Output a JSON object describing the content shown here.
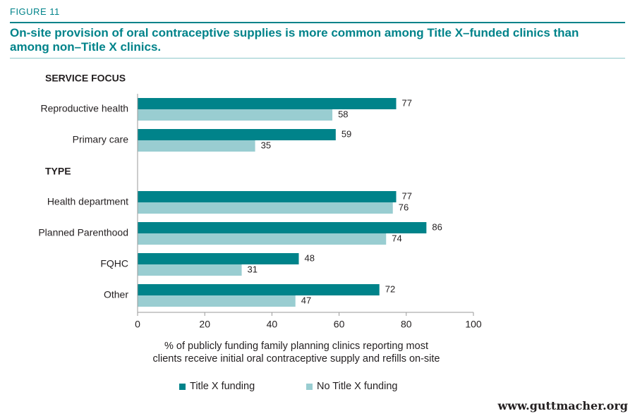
{
  "figure_label": "FIGURE 11",
  "title": "On-site provision of oral contraceptive supplies is more common among Title X–funded clinics than among non–Title X clinics.",
  "website": "www.guttmacher.org",
  "colors": {
    "accent": "#00838a",
    "title_x": "#00838a",
    "no_title_x": "#99cdd1",
    "rule_light": "#8fc9cb"
  },
  "chart_data": {
    "type": "bar",
    "orientation": "horizontal",
    "groups": [
      {
        "header": "SERVICE FOCUS",
        "categories": [
          "Reproductive health",
          "Primary care"
        ]
      },
      {
        "header": "TYPE",
        "categories": [
          "Health department",
          "Planned Parenthood",
          "FQHC",
          "Other"
        ]
      }
    ],
    "categories": [
      "Reproductive health",
      "Primary care",
      "Health department",
      "Planned Parenthood",
      "FQHC",
      "Other"
    ],
    "series": [
      {
        "name": "Title X funding",
        "values": [
          77,
          59,
          77,
          86,
          48,
          72
        ]
      },
      {
        "name": "No Title X funding",
        "values": [
          58,
          35,
          76,
          74,
          31,
          47
        ]
      }
    ],
    "xlabel": "% of publicly funding family planning clinics reporting most clients receive initial oral contraceptive supply and refills on-site",
    "xlabel_lines": [
      "% of publicly funding family planning clinics reporting most",
      "clients receive initial oral contraceptive supply and refills on-site"
    ],
    "xlim": [
      0,
      100
    ],
    "xticks": [
      0,
      20,
      40,
      60,
      80,
      100
    ],
    "legend_position": "bottom",
    "grid": false,
    "data_labels": true
  }
}
